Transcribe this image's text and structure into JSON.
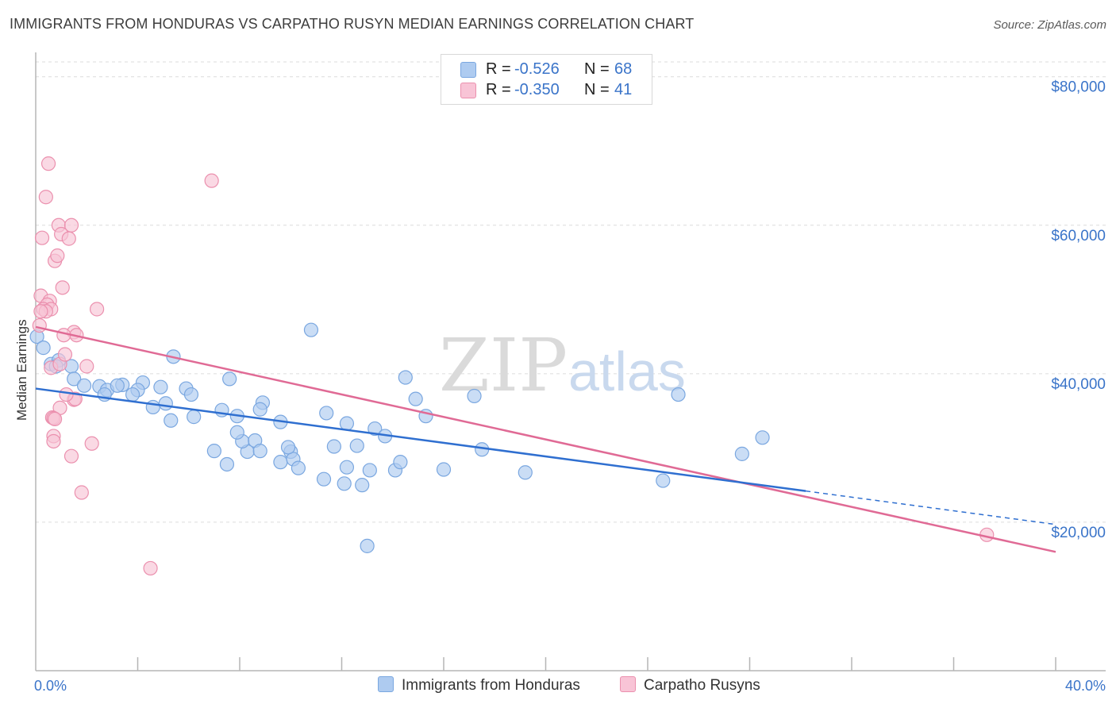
{
  "title": "IMMIGRANTS FROM HONDURAS VS CARPATHO RUSYN MEDIAN EARNINGS CORRELATION CHART",
  "source": "Source: ZipAtlas.com",
  "watermark": {
    "zip": "ZIP",
    "atlas": "atlas"
  },
  "legend": [
    {
      "r_label": "R =",
      "r_value": "-0.526",
      "n_label": "N =",
      "n_value": "68",
      "color": "#aecbf0",
      "border": "#7aa7e0"
    },
    {
      "r_label": "R =",
      "r_value": "-0.350",
      "n_label": "N =",
      "n_value": "41",
      "color": "#f8c4d6",
      "border": "#eb90ae"
    }
  ],
  "colors": {
    "blue_line": "#2f6fd0",
    "pink_line": "#e06a95",
    "blue_fill": "#aecbf0",
    "pink_fill": "#f8c4d6",
    "tick_text": "#3a74c9",
    "grid": "#dcdcdc"
  },
  "chart_data": {
    "type": "scatter",
    "ylabel": "Median Earnings",
    "xlim": [
      0,
      40
    ],
    "ylim": [
      0,
      82000
    ],
    "x_tick_labels": {
      "left": "0.0%",
      "right": "40.0%"
    },
    "y_ticks": [
      {
        "value": 20000,
        "label": "$20,000"
      },
      {
        "value": 40000,
        "label": "$40,000"
      },
      {
        "value": 60000,
        "label": "$60,000"
      },
      {
        "value": 80000,
        "label": "$80,000"
      }
    ],
    "series": [
      {
        "name": "Immigrants from Honduras",
        "color": "#aecbf0",
        "stroke": "#7aa7e0",
        "trend": {
          "x": [
            0,
            30.2
          ],
          "y": [
            38000,
            24200
          ],
          "dash_x": [
            30.2,
            40
          ],
          "dash_y": [
            24200,
            19700
          ],
          "color": "#2f6fd0"
        },
        "points": [
          [
            0.05,
            45000
          ],
          [
            0.3,
            43500
          ],
          [
            0.6,
            41300
          ],
          [
            0.9,
            41800
          ],
          [
            0.8,
            41000
          ],
          [
            1.4,
            41000
          ],
          [
            1.5,
            39300
          ],
          [
            2.5,
            38300
          ],
          [
            1.9,
            38400
          ],
          [
            3.4,
            38500
          ],
          [
            2.8,
            37800
          ],
          [
            2.7,
            37200
          ],
          [
            3.2,
            38400
          ],
          [
            4.2,
            38800
          ],
          [
            4.0,
            37800
          ],
          [
            3.8,
            37200
          ],
          [
            4.9,
            38200
          ],
          [
            5.9,
            38000
          ],
          [
            6.1,
            37200
          ],
          [
            5.1,
            36000
          ],
          [
            4.6,
            35500
          ],
          [
            7.3,
            35100
          ],
          [
            6.2,
            34200
          ],
          [
            7.9,
            34300
          ],
          [
            5.3,
            33700
          ],
          [
            8.9,
            36100
          ],
          [
            8.8,
            35200
          ],
          [
            9.6,
            33500
          ],
          [
            11.4,
            34700
          ],
          [
            12.2,
            33300
          ],
          [
            7.6,
            39300
          ],
          [
            5.4,
            42300
          ],
          [
            10.8,
            45900
          ],
          [
            7.0,
            29600
          ],
          [
            8.3,
            29500
          ],
          [
            7.5,
            27800
          ],
          [
            8.1,
            30900
          ],
          [
            7.9,
            32100
          ],
          [
            8.6,
            31000
          ],
          [
            8.8,
            29600
          ],
          [
            9.6,
            28100
          ],
          [
            10.0,
            29500
          ],
          [
            10.1,
            28500
          ],
          [
            10.3,
            27300
          ],
          [
            9.9,
            30100
          ],
          [
            11.3,
            25800
          ],
          [
            12.1,
            25200
          ],
          [
            12.2,
            27400
          ],
          [
            11.7,
            30200
          ],
          [
            12.8,
            25000
          ],
          [
            12.6,
            30300
          ],
          [
            13.3,
            32600
          ],
          [
            13.7,
            31600
          ],
          [
            13.1,
            27000
          ],
          [
            14.1,
            27000
          ],
          [
            14.5,
            39500
          ],
          [
            14.9,
            36600
          ],
          [
            15.3,
            34300
          ],
          [
            14.3,
            28100
          ],
          [
            16.0,
            27100
          ],
          [
            17.2,
            37000
          ],
          [
            17.5,
            29800
          ],
          [
            19.2,
            26700
          ],
          [
            13.0,
            16800
          ],
          [
            24.6,
            25600
          ],
          [
            25.2,
            37200
          ],
          [
            27.7,
            29200
          ],
          [
            28.5,
            31400
          ]
        ]
      },
      {
        "name": "Carpatho Rusyns",
        "color": "#f8c4d6",
        "stroke": "#eb90ae",
        "trend": {
          "x": [
            0,
            40
          ],
          "y": [
            46300,
            16000
          ],
          "color": "#e06a95"
        },
        "points": [
          [
            0.5,
            68300
          ],
          [
            0.4,
            63800
          ],
          [
            0.25,
            58300
          ],
          [
            0.9,
            60000
          ],
          [
            1.4,
            60000
          ],
          [
            1.0,
            58800
          ],
          [
            1.3,
            58200
          ],
          [
            0.75,
            55200
          ],
          [
            0.85,
            55900
          ],
          [
            1.05,
            51600
          ],
          [
            0.2,
            50500
          ],
          [
            0.55,
            49800
          ],
          [
            0.45,
            49300
          ],
          [
            0.3,
            48700
          ],
          [
            0.6,
            48700
          ],
          [
            0.4,
            48400
          ],
          [
            0.2,
            48400
          ],
          [
            0.15,
            46500
          ],
          [
            2.4,
            48700
          ],
          [
            1.5,
            45600
          ],
          [
            1.6,
            45200
          ],
          [
            0.6,
            40800
          ],
          [
            0.95,
            41300
          ],
          [
            0.95,
            35400
          ],
          [
            1.5,
            36500
          ],
          [
            1.55,
            36600
          ],
          [
            0.65,
            34100
          ],
          [
            0.7,
            34000
          ],
          [
            0.75,
            33900
          ],
          [
            0.7,
            31600
          ],
          [
            0.7,
            30900
          ],
          [
            2.2,
            30600
          ],
          [
            1.4,
            28900
          ],
          [
            1.8,
            24000
          ],
          [
            4.5,
            13800
          ],
          [
            6.9,
            66000
          ],
          [
            1.2,
            37200
          ],
          [
            2.0,
            41000
          ],
          [
            1.15,
            42600
          ],
          [
            1.1,
            45200
          ],
          [
            37.3,
            18300
          ]
        ]
      }
    ]
  }
}
